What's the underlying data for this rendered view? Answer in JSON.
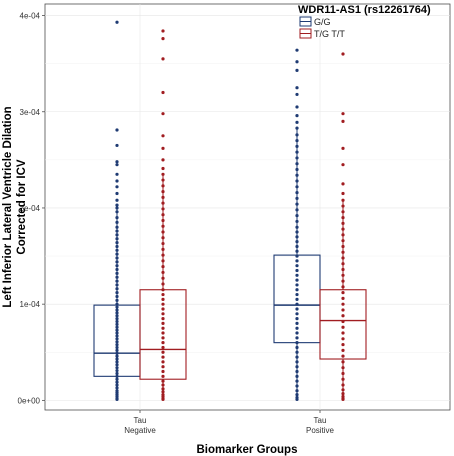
{
  "chart_data": {
    "type": "boxplot",
    "xlabel": "Biomarker Groups",
    "ylabel_lines": [
      "Left Inferior Lateral Ventricle Dilation",
      "Corrected for ICV"
    ],
    "ylim": [
      -1e-05,
      0.000412
    ],
    "y_ticks": [
      0,
      0.0001,
      0.0002,
      0.0003,
      0.0004
    ],
    "y_tick_labels": [
      "0e+00",
      "1e-04",
      "2e-04",
      "3e-04",
      "4e-04"
    ],
    "grid": true,
    "legend": {
      "title": "WDR11-AS1 (rs12261764)",
      "placement": "top-right",
      "entries": [
        "G/G",
        "T/G T/T"
      ]
    },
    "categories": [
      {
        "lines": [
          "Tau",
          "Negative"
        ]
      },
      {
        "lines": [
          "Tau",
          "Positive"
        ]
      }
    ],
    "series": [
      {
        "name": "G/G",
        "color": "#1f3b73",
        "boxes": [
          {
            "q1": 2.5e-05,
            "median": 4.9e-05,
            "q3": 9.9e-05,
            "whisker_low": 0.0,
            "whisker_high": 0.0002,
            "points": [
              0.000393,
              0.000281,
              0.000265,
              0.000248,
              0.000245,
              0.000235,
              0.000228,
              0.000222,
              0.000215,
              0.000208,
              0.000203,
              0.0002,
              0.000196,
              0.00019,
              0.000185,
              0.00018,
              0.000176,
              0.000172,
              0.000168,
              0.000164,
              0.00016,
              0.000156,
              0.000152,
              0.000148,
              0.000144,
              0.00014,
              0.000136,
              0.000132,
              0.000128,
              0.000124,
              0.00012,
              0.000116,
              0.000112,
              0.000108,
              0.000104,
              0.0001,
              9.7e-05,
              9.4e-05,
              9.1e-05,
              8.8e-05,
              8.5e-05,
              8.2e-05,
              7.9e-05,
              7.6e-05,
              7.3e-05,
              7e-05,
              6.7e-05,
              6.4e-05,
              6.1e-05,
              5.8e-05,
              5.5e-05,
              5.2e-05,
              4.9e-05,
              4.6e-05,
              4.3e-05,
              4e-05,
              3.7e-05,
              3.4e-05,
              3.1e-05,
              2.8e-05,
              2.5e-05,
              2.2e-05,
              1.9e-05,
              1.6e-05,
              1.3e-05,
              1e-05,
              8e-06,
              6e-06,
              4e-06,
              2e-06,
              1e-06
            ]
          },
          {
            "q1": 6e-05,
            "median": 9.9e-05,
            "q3": 0.000151,
            "whisker_low": 0.0,
            "whisker_high": 0.000283,
            "points": [
              0.000364,
              0.000352,
              0.000343,
              0.000325,
              0.000318,
              0.000305,
              0.000296,
              0.000289,
              0.000283,
              0.000276,
              0.00027,
              0.000264,
              0.000258,
              0.000252,
              0.000246,
              0.00024,
              0.000234,
              0.000228,
              0.000222,
              0.000216,
              0.00021,
              0.000204,
              0.000198,
              0.000192,
              0.000186,
              0.00018,
              0.000175,
              0.00017,
              0.000165,
              0.00016,
              0.000155,
              0.00015,
              0.000145,
              0.00014,
              0.000135,
              0.00013,
              0.000125,
              0.00012,
              0.000115,
              0.00011,
              0.000105,
              0.0001,
              9.5e-05,
              9e-05,
              8.5e-05,
              8e-05,
              7.5e-05,
              7e-05,
              6.5e-05,
              6e-05,
              5.5e-05,
              5e-05,
              4.5e-05,
              4e-05,
              3.5e-05,
              3e-05,
              2.5e-05,
              2e-05,
              1.5e-05,
              1e-05,
              6e-06,
              3e-06,
              1e-06
            ]
          }
        ]
      },
      {
        "name": "T/G T/T",
        "color": "#a11d21",
        "boxes": [
          {
            "q1": 2.2e-05,
            "median": 5.3e-05,
            "q3": 0.000115,
            "whisker_low": 0.0,
            "whisker_high": 0.000235,
            "points": [
              0.000384,
              0.000376,
              0.000355,
              0.00032,
              0.000298,
              0.000275,
              0.000262,
              0.00025,
              0.000241,
              0.000235,
              0.000229,
              0.000223,
              0.000217,
              0.000211,
              0.000205,
              0.000199,
              0.000193,
              0.000187,
              0.000181,
              0.000175,
              0.000169,
              0.000163,
              0.000157,
              0.000151,
              0.000145,
              0.000139,
              0.000133,
              0.000127,
              0.000121,
              0.000115,
              0.00011,
              0.000105,
              0.0001,
              9.5e-05,
              9e-05,
              8.5e-05,
              8e-05,
              7.5e-05,
              7e-05,
              6.5e-05,
              6e-05,
              5.5e-05,
              5e-05,
              4.5e-05,
              4e-05,
              3.5e-05,
              3e-05,
              2.5e-05,
              2e-05,
              1.6e-05,
              1.2e-05,
              9e-06,
              6e-06,
              4e-06,
              2e-06,
              1e-06
            ]
          },
          {
            "q1": 4.3e-05,
            "median": 8.3e-05,
            "q3": 0.000115,
            "whisker_low": 0.0,
            "whisker_high": 0.000208,
            "points": [
              0.00036,
              0.000298,
              0.00029,
              0.000262,
              0.000245,
              0.000225,
              0.000215,
              0.000208,
              0.000202,
              0.000196,
              0.00019,
              0.000184,
              0.000178,
              0.000172,
              0.000166,
              0.00016,
              0.000154,
              0.000148,
              0.000142,
              0.000136,
              0.00013,
              0.000124,
              0.000118,
              0.000112,
              0.000106,
              0.0001,
              9.4e-05,
              8.8e-05,
              8.2e-05,
              7.6e-05,
              7e-05,
              6.4e-05,
              5.8e-05,
              5.2e-05,
              4.6e-05,
              4e-05,
              3.4e-05,
              2.8e-05,
              2.2e-05,
              1.6e-05,
              1.1e-05,
              7e-06,
              4e-06,
              2e-06,
              1e-06
            ]
          }
        ]
      }
    ]
  }
}
